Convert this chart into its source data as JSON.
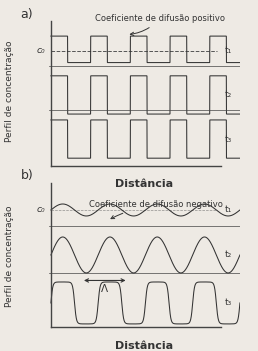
{
  "fig_width": 2.58,
  "fig_height": 3.51,
  "dpi": 100,
  "bg_color": "#eeeae4",
  "panel_a_label": "a)",
  "panel_b_label": "b)",
  "xlabel": "Distância",
  "ylabel": "Perfil de concentração",
  "annot_a": "Coeficiente de difusão positivo",
  "annot_b": "Coeficiente de difusão negativo",
  "c0_label": "c₀",
  "t1_label": "t₁",
  "t2_label": "t₂",
  "t3_label": "t₃",
  "lambda_label": "Λ",
  "line_color": "#333333",
  "dashed_color": "#555555",
  "axis_color": "#444444"
}
